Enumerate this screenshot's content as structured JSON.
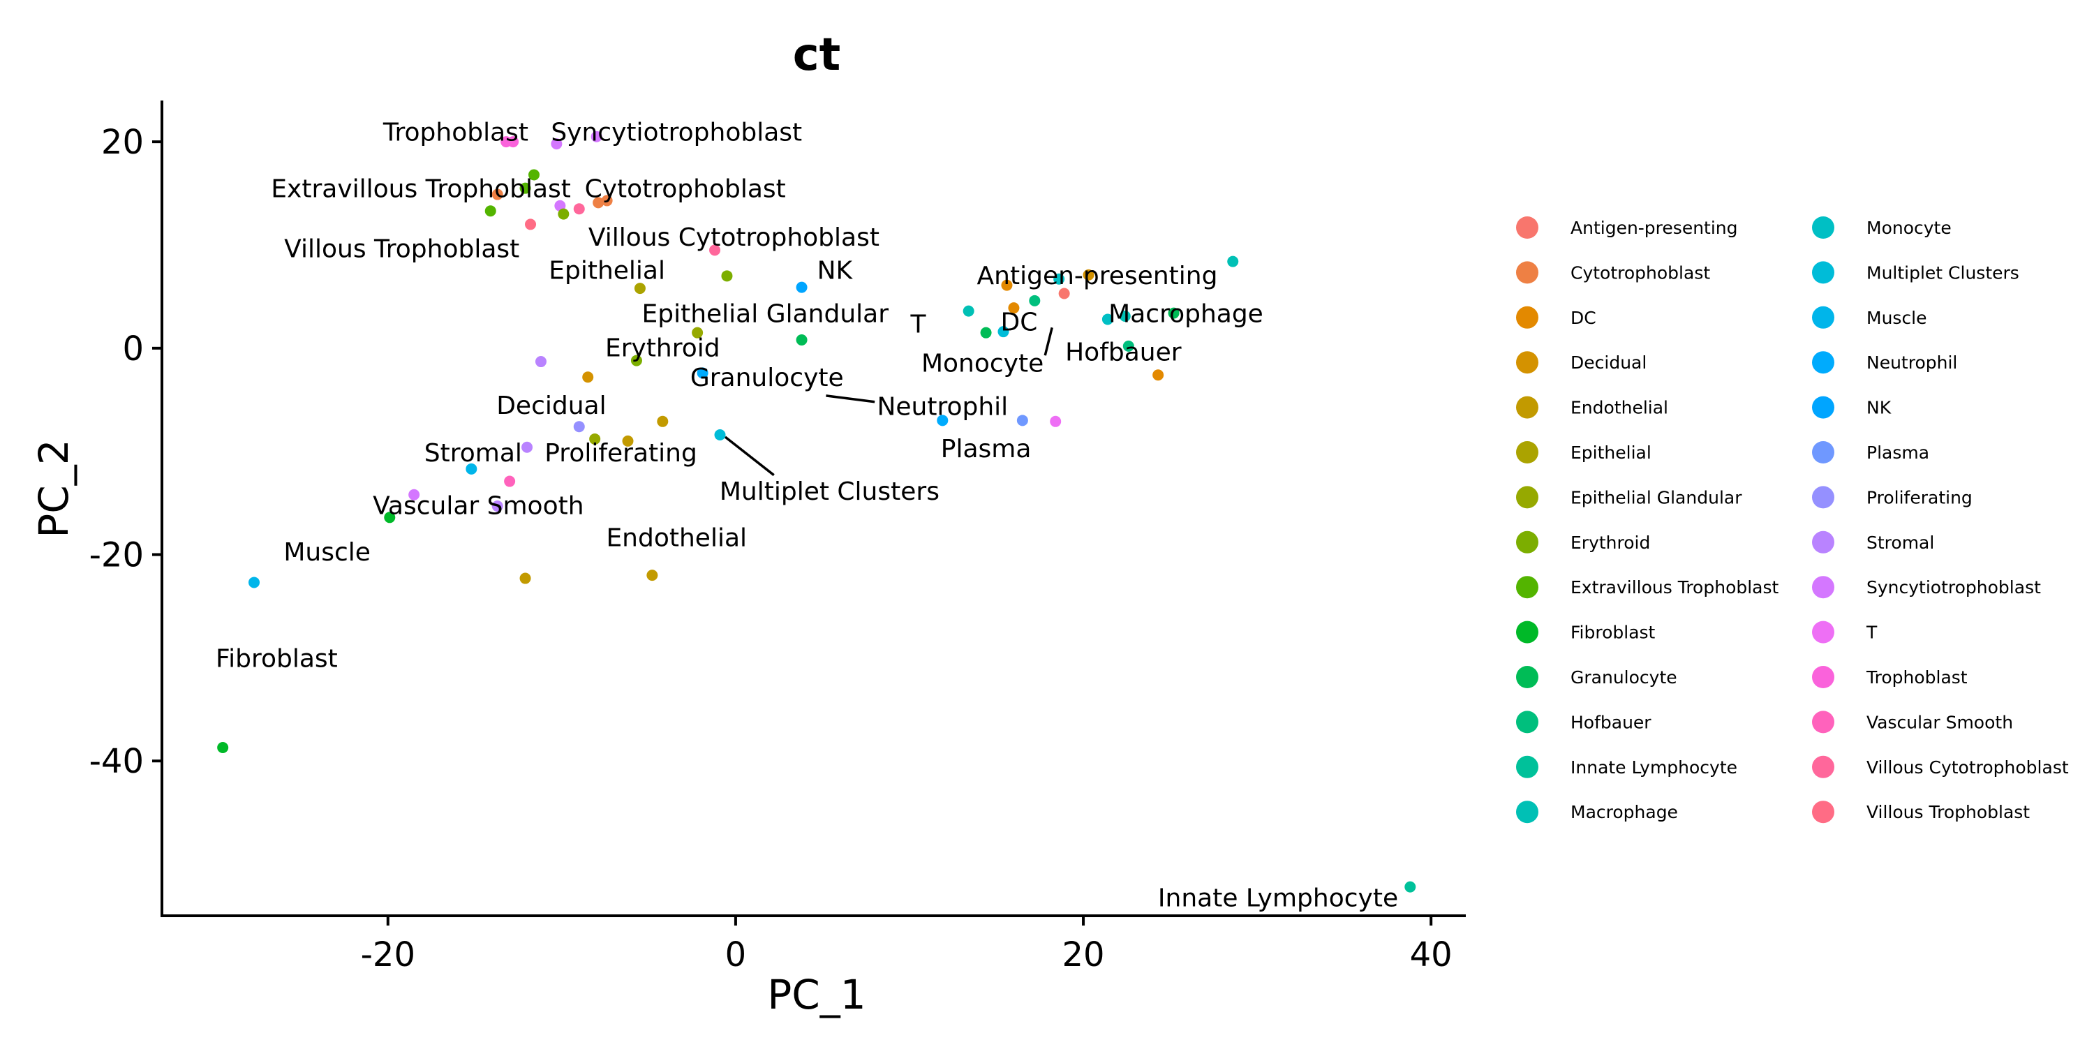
{
  "chart_data": {
    "type": "scatter",
    "title": "ct",
    "xlabel": "PC_1",
    "ylabel": "PC_2",
    "xlim": [
      -33,
      42
    ],
    "ylim": [
      -55,
      24
    ],
    "xticks": [
      "-20",
      "0",
      "20",
      "40"
    ],
    "yticks": [
      "20",
      "0",
      "-20",
      "-40"
    ],
    "legend_position": "right",
    "legend": [
      {
        "name": "Antigen-presenting",
        "color": "#F8766D"
      },
      {
        "name": "Cytotrophoblast",
        "color": "#EE8044"
      },
      {
        "name": "DC",
        "color": "#E38900"
      },
      {
        "name": "Decidual",
        "color": "#D49200"
      },
      {
        "name": "Endothelial",
        "color": "#C29A00"
      },
      {
        "name": "Epithelial",
        "color": "#ABA300"
      },
      {
        "name": "Epithelial Glandular",
        "color": "#96A900"
      },
      {
        "name": "Erythroid",
        "color": "#7CAE00"
      },
      {
        "name": "Extravillous Trophoblast",
        "color": "#53B400"
      },
      {
        "name": "Fibroblast",
        "color": "#00B928"
      },
      {
        "name": "Granulocyte",
        "color": "#00BC56"
      },
      {
        "name": "Hofbauer",
        "color": "#00BF7D"
      },
      {
        "name": "Innate Lymphocyte",
        "color": "#00C19A"
      },
      {
        "name": "Macrophage",
        "color": "#00C0B5"
      },
      {
        "name": "Monocyte",
        "color": "#00BFC4"
      },
      {
        "name": "Multiplet Clusters",
        "color": "#00BCD8"
      },
      {
        "name": "Muscle",
        "color": "#00B5EA"
      },
      {
        "name": "Neutrophil",
        "color": "#00ABFD"
      },
      {
        "name": "NK",
        "color": "#00A5FF"
      },
      {
        "name": "Plasma",
        "color": "#6F98FF"
      },
      {
        "name": "Proliferating",
        "color": "#9590FF"
      },
      {
        "name": "Stromal",
        "color": "#B983FF"
      },
      {
        "name": "Syncytiotrophoblast",
        "color": "#D477FF"
      },
      {
        "name": "T",
        "color": "#EE6FF5"
      },
      {
        "name": "Trophoblast",
        "color": "#FA62DB"
      },
      {
        "name": "Vascular Smooth",
        "color": "#FF62BC"
      },
      {
        "name": "Villous Cytotrophoblast",
        "color": "#FF679B"
      },
      {
        "name": "Villous Trophoblast",
        "color": "#FF6C85"
      }
    ],
    "points": [
      {
        "x": -13.2,
        "y": 20.0,
        "color": "#FA62DB"
      },
      {
        "x": -12.8,
        "y": 20.0,
        "color": "#FA62DB"
      },
      {
        "x": -10.3,
        "y": 19.8,
        "color": "#D477FF"
      },
      {
        "x": -8.0,
        "y": 20.5,
        "color": "#D477FF"
      },
      {
        "x": -13.7,
        "y": 14.9,
        "color": "#EE8044"
      },
      {
        "x": -12.1,
        "y": 15.5,
        "color": "#53B400"
      },
      {
        "x": -11.6,
        "y": 16.8,
        "color": "#53B400"
      },
      {
        "x": -14.1,
        "y": 13.3,
        "color": "#53B400"
      },
      {
        "x": -11.8,
        "y": 12.0,
        "color": "#FF6C85"
      },
      {
        "x": -10.1,
        "y": 13.8,
        "color": "#D477FF"
      },
      {
        "x": -9.9,
        "y": 13.0,
        "color": "#7CAE00"
      },
      {
        "x": -9.0,
        "y": 13.5,
        "color": "#FF679B"
      },
      {
        "x": -7.9,
        "y": 14.1,
        "color": "#EE8044"
      },
      {
        "x": -7.4,
        "y": 14.3,
        "color": "#EE8044"
      },
      {
        "x": -1.2,
        "y": 9.5,
        "color": "#FF679B"
      },
      {
        "x": -5.5,
        "y": 5.8,
        "color": "#ABA300"
      },
      {
        "x": -0.5,
        "y": 7.0,
        "color": "#7CAE00"
      },
      {
        "x": 3.8,
        "y": 5.9,
        "color": "#00A5FF"
      },
      {
        "x": -2.2,
        "y": 1.5,
        "color": "#96A900"
      },
      {
        "x": 3.8,
        "y": 0.8,
        "color": "#00BC56"
      },
      {
        "x": -11.2,
        "y": -1.3,
        "color": "#B983FF"
      },
      {
        "x": -8.5,
        "y": -2.8,
        "color": "#D49200"
      },
      {
        "x": -5.7,
        "y": -1.2,
        "color": "#7CAE00"
      },
      {
        "x": -1.9,
        "y": -2.4,
        "color": "#00ABFD"
      },
      {
        "x": -9.0,
        "y": -7.6,
        "color": "#9590FF"
      },
      {
        "x": -12.0,
        "y": -9.6,
        "color": "#B983FF"
      },
      {
        "x": -8.1,
        "y": -8.8,
        "color": "#96A900"
      },
      {
        "x": -6.2,
        "y": -9.0,
        "color": "#C29A00"
      },
      {
        "x": -4.2,
        "y": -7.1,
        "color": "#C29A00"
      },
      {
        "x": -0.9,
        "y": -8.4,
        "color": "#00BCD8"
      },
      {
        "x": -15.2,
        "y": -11.7,
        "color": "#00B5EA"
      },
      {
        "x": -13.0,
        "y": -12.9,
        "color": "#FF62BC"
      },
      {
        "x": -18.5,
        "y": -14.2,
        "color": "#D477FF"
      },
      {
        "x": -13.7,
        "y": -15.3,
        "color": "#B983FF"
      },
      {
        "x": -19.9,
        "y": -16.4,
        "color": "#00B928"
      },
      {
        "x": -12.1,
        "y": -22.3,
        "color": "#C29A00"
      },
      {
        "x": -4.8,
        "y": -22.0,
        "color": "#C29A00"
      },
      {
        "x": -27.7,
        "y": -22.7,
        "color": "#00B5EA"
      },
      {
        "x": -29.5,
        "y": -38.7,
        "color": "#00B928"
      },
      {
        "x": 15.6,
        "y": 6.1,
        "color": "#E38900"
      },
      {
        "x": 16.0,
        "y": 3.9,
        "color": "#E38900"
      },
      {
        "x": 18.6,
        "y": 6.7,
        "color": "#00BFC4"
      },
      {
        "x": 18.9,
        "y": 5.3,
        "color": "#F8766D"
      },
      {
        "x": 20.3,
        "y": 7.1,
        "color": "#D49200"
      },
      {
        "x": 17.2,
        "y": 4.6,
        "color": "#00BF7D"
      },
      {
        "x": 13.4,
        "y": 3.6,
        "color": "#00C0B5"
      },
      {
        "x": 14.4,
        "y": 1.5,
        "color": "#00BC56"
      },
      {
        "x": 15.4,
        "y": 1.6,
        "color": "#00BCD8"
      },
      {
        "x": 21.4,
        "y": 2.8,
        "color": "#00BFC4"
      },
      {
        "x": 22.4,
        "y": 3.1,
        "color": "#00C0B5"
      },
      {
        "x": 25.2,
        "y": 3.4,
        "color": "#00BC56"
      },
      {
        "x": 22.6,
        "y": 0.2,
        "color": "#00BF7D"
      },
      {
        "x": 28.6,
        "y": 8.4,
        "color": "#00C0B5"
      },
      {
        "x": 24.3,
        "y": -2.6,
        "color": "#E38900"
      },
      {
        "x": 11.9,
        "y": -7.0,
        "color": "#00ABFD"
      },
      {
        "x": 16.5,
        "y": -7.0,
        "color": "#6F98FF"
      },
      {
        "x": 18.4,
        "y": -7.1,
        "color": "#EE6FF5"
      },
      {
        "x": 38.8,
        "y": -52.2,
        "color": "#00C19A"
      }
    ],
    "annotations": [
      {
        "text": "Trophoblast",
        "x": -16.1,
        "y": 21.0
      },
      {
        "text": "Syncytiotrophoblast",
        "x": -3.4,
        "y": 21.0
      },
      {
        "text": "Extravillous Trophoblast",
        "x": -18.1,
        "y": 15.5
      },
      {
        "text": "Cytotrophoblast",
        "x": -2.9,
        "y": 15.5
      },
      {
        "text": "Villous Cytotrophoblast",
        "x": -0.1,
        "y": 10.8
      },
      {
        "text": "Villous Trophoblast",
        "x": -19.2,
        "y": 9.7
      },
      {
        "text": "Epithelial",
        "x": -7.4,
        "y": 7.6
      },
      {
        "text": "NK",
        "x": 5.7,
        "y": 7.6
      },
      {
        "text": "Epithelial Glandular",
        "x": 1.7,
        "y": 3.4
      },
      {
        "text": "T",
        "x": 10.5,
        "y": 2.4
      },
      {
        "text": "DC",
        "x": 16.3,
        "y": 2.6
      },
      {
        "text": "Antigen-presenting",
        "x": 20.8,
        "y": 7.1
      },
      {
        "text": "Macrophage",
        "x": 25.9,
        "y": 3.4
      },
      {
        "text": "Hofbauer",
        "x": 22.3,
        "y": -0.3
      },
      {
        "text": "Monocyte",
        "x": 14.2,
        "y": -1.4
      },
      {
        "text": "Erythroid",
        "x": -4.2,
        "y": 0.1
      },
      {
        "text": "Granulocyte",
        "x": 1.8,
        "y": -2.8
      },
      {
        "text": "Neutrophil",
        "x": 11.9,
        "y": -5.6
      },
      {
        "text": "Decidual",
        "x": -10.6,
        "y": -5.5
      },
      {
        "text": "Plasma",
        "x": 14.4,
        "y": -9.7
      },
      {
        "text": "Stromal",
        "x": -15.1,
        "y": -10.1
      },
      {
        "text": "Proliferating",
        "x": -6.6,
        "y": -10.1
      },
      {
        "text": "Multiplet Clusters",
        "x": 5.4,
        "y": -13.8
      },
      {
        "text": "Vascular Smooth",
        "x": -14.8,
        "y": -15.2
      },
      {
        "text": "Endothelial",
        "x": -3.4,
        "y": -18.3
      },
      {
        "text": "Muscle",
        "x": -23.5,
        "y": -19.7
      },
      {
        "text": "Fibroblast",
        "x": -26.4,
        "y": -30.0
      },
      {
        "text": "Innate Lymphocyte",
        "x": 31.2,
        "y": -53.2
      }
    ],
    "leader_lines": [
      {
        "x1": 18.2,
        "y1": 2.0,
        "x2": 17.8,
        "y2": -0.7
      },
      {
        "x1": 5.2,
        "y1": -4.6,
        "x2": 8.0,
        "y2": -5.2
      },
      {
        "x1": -0.6,
        "y1": -8.6,
        "x2": 2.2,
        "y2": -12.3
      }
    ]
  }
}
